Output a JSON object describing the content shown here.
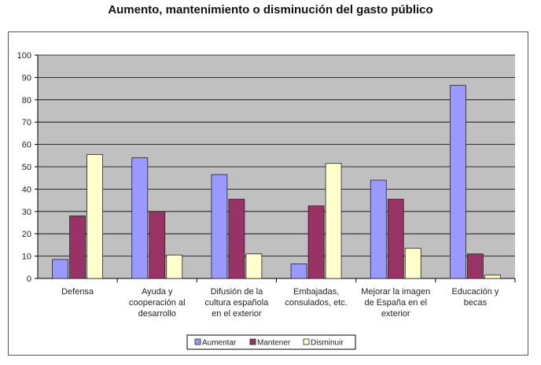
{
  "chart_data": {
    "type": "bar",
    "title": "Aumento, mantenimiento o disminución del gasto público",
    "xlabel": "",
    "ylabel": "",
    "ylim": [
      0,
      100
    ],
    "yticks": [
      0,
      10,
      20,
      30,
      40,
      50,
      60,
      70,
      80,
      90,
      100
    ],
    "grid": true,
    "legend_position": "bottom",
    "categories": [
      [
        "Defensa"
      ],
      [
        "Ayuda y",
        "cooperación al",
        "desarrollo"
      ],
      [
        "Difusión de la",
        "cultura española",
        "en el exterior"
      ],
      [
        "Embajadas,",
        "consulados, etc."
      ],
      [
        "Mejorar la imagen",
        "de España en el",
        "exterior"
      ],
      [
        "Educación y",
        "becas"
      ]
    ],
    "series": [
      {
        "name": "Aumentar",
        "color": "#9999ff",
        "values": [
          8.5,
          54,
          46.5,
          6.5,
          44,
          86.5
        ]
      },
      {
        "name": "Mantener",
        "color": "#993366",
        "values": [
          28,
          30,
          35.5,
          32.5,
          35.5,
          11
        ]
      },
      {
        "name": "Disminuir",
        "color": "#ffffcc",
        "values": [
          55.5,
          10.5,
          11,
          51.5,
          13.5,
          1.5
        ]
      }
    ]
  }
}
